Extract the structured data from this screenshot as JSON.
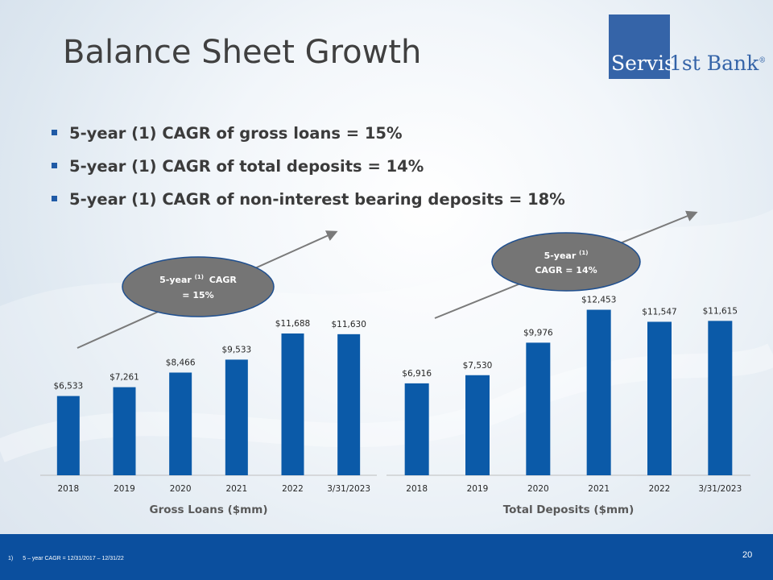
{
  "title": "Balance Sheet Growth",
  "logo": {
    "name": "Servis",
    "suffix": "1st Bank",
    "mark": "®"
  },
  "bullets": [
    "5-year (1) CAGR of gross loans = 15%",
    "5-year (1) CAGR of total deposits = 14%",
    "5-year (1) CAGR of non-interest bearing deposits = 18%"
  ],
  "callouts": {
    "loans": {
      "line1": "5-year",
      "sup": "(1)",
      "line1_end": "CAGR",
      "line2": "= 15%"
    },
    "deposits": {
      "line1": "5-year",
      "sup": "(1)",
      "line2": "CAGR = 14%"
    }
  },
  "colors": {
    "bar": "#0b5aa8",
    "footer": "#0b4f9e",
    "callout": "#757575",
    "arrow": "#7a7a7a"
  },
  "chart_data": [
    {
      "type": "bar",
      "categories": [
        "2018",
        "2019",
        "2020",
        "2021",
        "2022",
        "3/31/2023"
      ],
      "values": [
        6533,
        7261,
        8466,
        9533,
        11688,
        11630
      ],
      "value_labels": [
        "$6,533",
        "$7,261",
        "$8,466",
        "$9,533",
        "$11,688",
        "$11,630"
      ],
      "xlabel": "Gross Loans ($mm)",
      "ylim": [
        0,
        12000
      ]
    },
    {
      "type": "bar",
      "categories": [
        "2018",
        "2019",
        "2020",
        "2021",
        "2022",
        "3/31/2023"
      ],
      "values": [
        6916,
        7530,
        9976,
        12453,
        11547,
        11615
      ],
      "value_labels": [
        "$6,916",
        "$7,530",
        "$9,976",
        "$12,453",
        "$11,547",
        "$11,615"
      ],
      "xlabel": "Total Deposits ($mm)",
      "ylim": [
        0,
        13000
      ]
    }
  ],
  "footnote": {
    "num": "1)",
    "text": "5 – year CAGR = 12/31/2017 – 12/31/22"
  },
  "page_number": "20"
}
